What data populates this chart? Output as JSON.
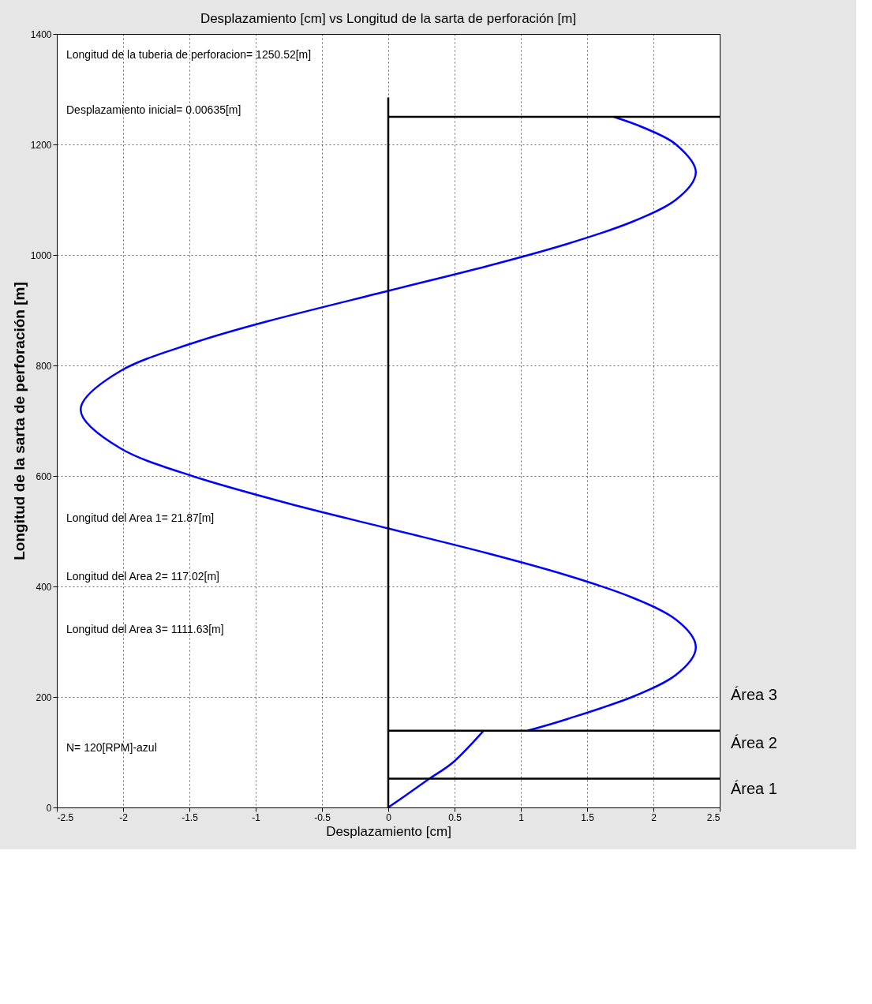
{
  "chart_data": {
    "type": "line",
    "title": "Desplazamiento [cm] vs Longitud de la sarta de perforación [m]",
    "xlabel": "Desplazamiento [cm]",
    "ylabel": "Longitud de la sarta de perforación [m]",
    "xlim": [
      -2.5,
      2.5
    ],
    "xticks": [
      -2.5,
      -2,
      -1.5,
      -1,
      -0.5,
      0,
      0.5,
      1,
      1.5,
      2,
      2.5
    ],
    "ylim": [
      0,
      1400
    ],
    "yticks": [
      0,
      200,
      400,
      600,
      800,
      1000,
      1200,
      1400
    ],
    "grid": true,
    "marker": "none",
    "line_style": "solid",
    "series": [
      {
        "color": "#0000ff",
        "x": [
          0,
          0.15,
          0.31,
          0.5,
          0.72
        ],
        "values": [
          0,
          25,
          52,
          84,
          139
        ]
      },
      {
        "color": "#0000ff",
        "x": [
          1.05,
          1.35,
          1.84,
          2.17,
          2.32,
          2.17,
          1.84,
          1.35,
          0.75,
          0,
          -0.75,
          -1.48,
          -2.02,
          -2.32,
          -2.02,
          -1.48,
          -0.91,
          0,
          0.75,
          1.35,
          1.84,
          2.17,
          2.32,
          2.17,
          1.93,
          1.7
        ],
        "values": [
          139,
          160,
          200,
          240,
          290,
          340,
          380,
          420,
          460,
          505,
          550,
          600,
          650,
          720,
          790,
          840,
          880,
          935,
          980,
          1020,
          1060,
          1100,
          1150,
          1200,
          1230,
          1250
        ]
      },
      {
        "color": "#000000",
        "x": [
          0,
          0
        ],
        "values": [
          0,
          1285
        ]
      },
      {
        "color": "#000000",
        "x": [
          0,
          2.5
        ],
        "values": [
          1250,
          1250
        ]
      },
      {
        "color": "#000000",
        "x": [
          0,
          2.5
        ],
        "values": [
          139,
          139
        ]
      },
      {
        "color": "#000000",
        "x": [
          0,
          2.5
        ],
        "values": [
          52,
          52
        ]
      }
    ],
    "annotations": [
      "Longitud de la tuberia de perforacion= 1250.52[m]",
      "Desplazamiento inicial= 0.00635[m]",
      "Longitud del Area 1= 21.87[m]",
      "Longitud del Area 2= 117.02[m]",
      "Longitud del Area 3= 1111.63[m]",
      "N= 120[RPM]-azul",
      "Área 3",
      "Área 2",
      "Área 1"
    ]
  }
}
